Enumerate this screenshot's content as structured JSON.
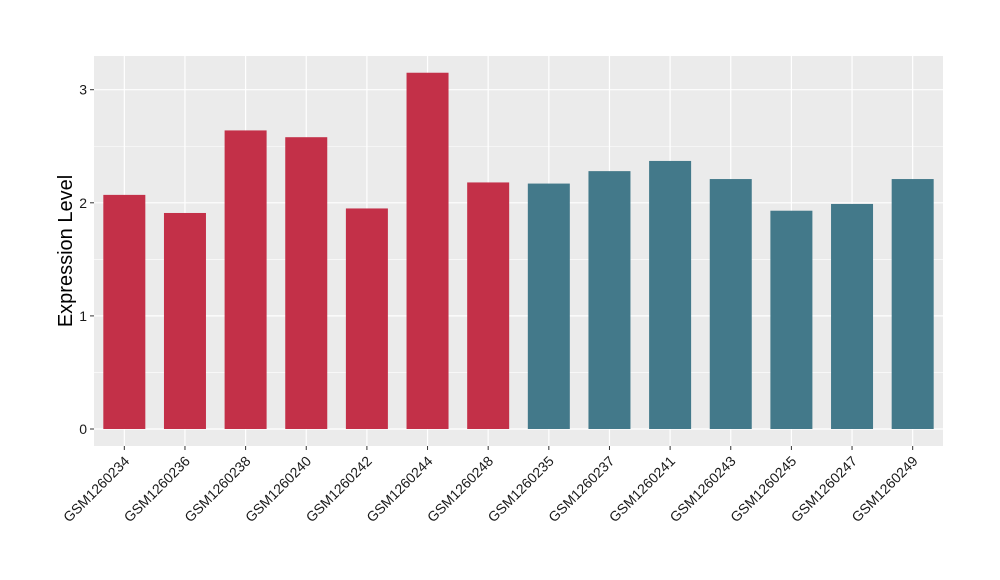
{
  "chart_data": {
    "type": "bar",
    "title": "",
    "xlabel": "",
    "ylabel": "Expression Level",
    "ylim": [
      0,
      3.3
    ],
    "yticks": [
      0,
      1,
      2,
      3
    ],
    "grid": true,
    "legend": "none",
    "colors": {
      "panel": "#ebebeb",
      "grid": "#ffffff",
      "group_a": "#c33048",
      "group_b": "#43798a"
    },
    "categories": [
      "GSM1260234",
      "GSM1260236",
      "GSM1260238",
      "GSM1260240",
      "GSM1260242",
      "GSM1260244",
      "GSM1260248",
      "GSM1260235",
      "GSM1260237",
      "GSM1260241",
      "GSM1260243",
      "GSM1260245",
      "GSM1260247",
      "GSM1260249"
    ],
    "values": [
      2.07,
      1.91,
      2.64,
      2.58,
      1.95,
      3.15,
      2.18,
      2.17,
      2.28,
      2.37,
      2.21,
      1.93,
      1.99,
      2.21
    ],
    "bar_groups": [
      "a",
      "a",
      "a",
      "a",
      "a",
      "a",
      "a",
      "b",
      "b",
      "b",
      "b",
      "b",
      "b",
      "b"
    ]
  }
}
